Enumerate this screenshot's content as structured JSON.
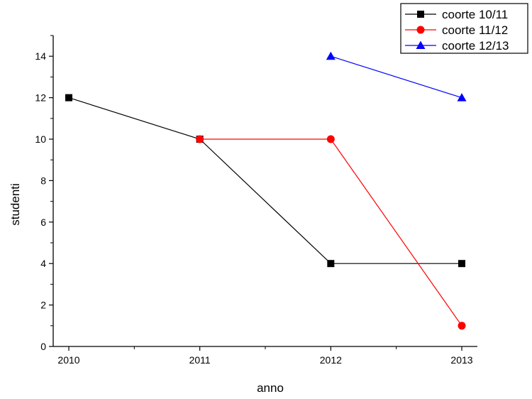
{
  "chart_data": {
    "type": "line",
    "title": "",
    "xlabel": "anno",
    "ylabel": "studenti",
    "x_ticks": [
      "2010",
      "2011",
      "2012",
      "2013"
    ],
    "y_ticks": [
      "0",
      "2",
      "4",
      "6",
      "8",
      "10",
      "12",
      "14"
    ],
    "xlim": [
      2010,
      2013
    ],
    "ylim": [
      0,
      15
    ],
    "grid": false,
    "legend_position": "top-right",
    "series": [
      {
        "name": "coorte 10/11",
        "color": "#000000",
        "marker": "square",
        "x": [
          2010,
          2011,
          2012,
          2013
        ],
        "y": [
          12,
          10,
          4,
          4
        ]
      },
      {
        "name": "coorte 11/12",
        "color": "#ff0000",
        "marker": "circle",
        "x": [
          2011,
          2012,
          2013
        ],
        "y": [
          10,
          10,
          1
        ]
      },
      {
        "name": "coorte 12/13",
        "color": "#0000ff",
        "marker": "triangle",
        "x": [
          2012,
          2013
        ],
        "y": [
          14,
          12
        ]
      }
    ]
  }
}
